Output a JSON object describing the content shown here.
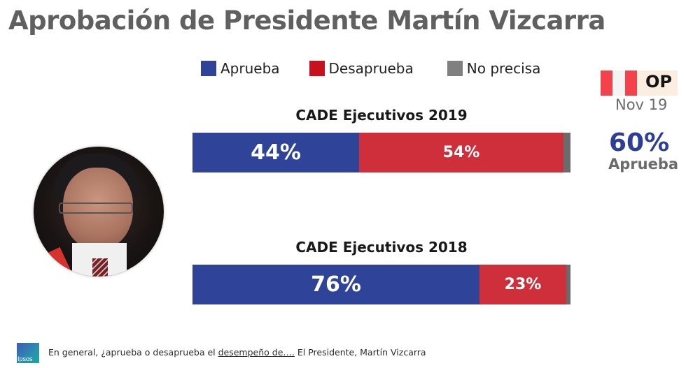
{
  "title": "Aprobación de Presidente Martín Vizcarra",
  "legend": [
    {
      "label": "Aprueba",
      "color": "#2f4399"
    },
    {
      "label": "Desaprueba",
      "color": "#c8101f"
    },
    {
      "label": "No precisa",
      "color": "#808080"
    }
  ],
  "side_panel": {
    "badge": "OP",
    "date": "Nov 19",
    "value": "60%",
    "label": "Aprueba"
  },
  "photo_alt": "Martín Vizcarra",
  "footer": {
    "logo": "Ipsos",
    "question_prefix": "En general, ¿aprueba o desaprueba el ",
    "question_underlined": "desempeño de….",
    "question_suffix": " El Presidente, Martín Vizcarra"
  },
  "chart_data": {
    "type": "bar",
    "orientation": "horizontal-stacked",
    "title": "Aprobación de Presidente Martín Vizcarra",
    "categories": [
      "CADE Ejecutivos 2019",
      "CADE Ejecutivos 2018"
    ],
    "series": [
      {
        "name": "Aprueba",
        "color": "#2f4399",
        "values": [
          44,
          76
        ],
        "labels": [
          "44%",
          "76%"
        ]
      },
      {
        "name": "Desaprueba",
        "color": "#cf2f3b",
        "values": [
          54,
          23
        ],
        "labels": [
          "54%",
          "23%"
        ]
      },
      {
        "name": "No precisa",
        "color": "#6b6b6b",
        "values": [
          2,
          1
        ],
        "labels": [
          "",
          ""
        ]
      }
    ],
    "xlim": [
      0,
      100
    ],
    "unit": "%",
    "legend_position": "top",
    "grid": false
  }
}
